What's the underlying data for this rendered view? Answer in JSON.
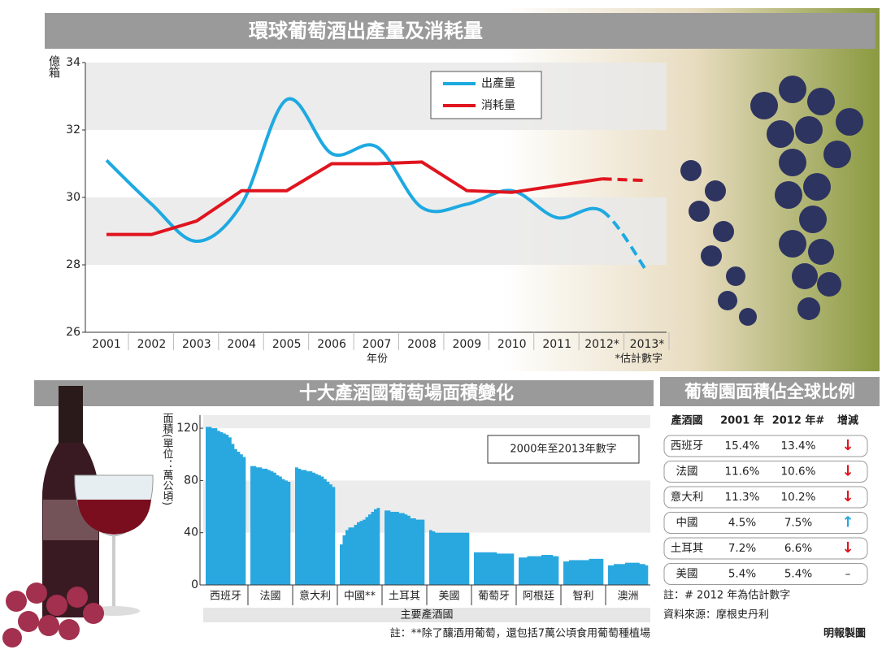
{
  "chart_data": [
    {
      "type": "line",
      "title": "環球葡萄酒出產量及消耗量",
      "ylabel": "億箱",
      "xlabel": "年份",
      "note": "*估計數字",
      "categories": [
        "2001",
        "2002",
        "2003",
        "2004",
        "2005",
        "2006",
        "2007",
        "2008",
        "2009",
        "2010",
        "2011",
        "2012*",
        "2013*"
      ],
      "series": [
        {
          "name": "出產量",
          "color": "#1ea9e1",
          "smooth": true,
          "values": [
            31.1,
            29.8,
            28.7,
            29.8,
            32.9,
            31.3,
            31.5,
            29.7,
            29.8,
            30.2,
            29.4,
            29.6,
            27.8
          ]
        },
        {
          "name": "消耗量",
          "color": "#e0141e",
          "smooth": false,
          "values": [
            28.9,
            28.9,
            29.3,
            30.2,
            30.2,
            31.0,
            31.0,
            31.05,
            30.2,
            30.15,
            30.35,
            30.55,
            30.5
          ]
        }
      ],
      "ylim": [
        26,
        34
      ],
      "yticks": [
        26,
        28,
        30,
        32,
        34
      ],
      "grid": "bands"
    },
    {
      "type": "bar",
      "title": "十大產酒國葡萄場面積變化",
      "ylabel": "面積(單位：萬公頃)",
      "xlabel": "主要產酒國",
      "note": "2000年至2013年數字",
      "footnote": "註：**除了釀酒用葡萄，還包括7萬公頃食用葡萄種植場",
      "color": "#29a8e0",
      "categories": [
        "西班牙",
        "法國",
        "意大利",
        "中國**",
        "土耳其",
        "美國",
        "葡萄牙",
        "阿根廷",
        "智利",
        "澳洲"
      ],
      "values": [
        [
          121,
          121,
          120,
          120,
          118,
          117,
          116,
          115,
          113,
          108,
          104,
          102,
          100,
          98
        ],
        [
          91,
          91,
          90,
          90,
          89,
          89,
          88,
          87,
          86,
          84,
          83,
          81,
          80,
          79
        ],
        [
          90,
          89,
          88,
          88,
          87,
          87,
          86,
          85,
          84,
          83,
          81,
          79,
          77,
          75
        ],
        [
          31,
          38,
          42,
          44,
          44,
          46,
          48,
          49,
          50,
          52,
          54,
          56,
          58,
          59
        ],
        [
          57,
          57,
          56,
          56,
          56,
          55,
          55,
          54,
          53,
          51,
          51,
          50,
          50,
          50
        ],
        [
          42,
          41,
          40,
          40,
          40,
          40,
          40,
          40,
          40,
          40,
          40,
          40,
          40,
          40
        ],
        [
          25,
          25,
          25,
          25,
          25,
          25,
          25,
          25,
          24,
          24,
          24,
          24,
          24,
          24
        ],
        [
          21,
          21,
          21,
          22,
          22,
          22,
          22,
          22,
          23,
          23,
          23,
          23,
          22,
          22
        ],
        [
          18,
          18,
          19,
          19,
          19,
          19,
          19,
          19,
          19,
          20,
          20,
          20,
          20,
          20
        ],
        [
          15,
          15,
          16,
          16,
          16,
          16,
          17,
          17,
          17,
          17,
          17,
          16,
          16,
          15
        ]
      ],
      "ylim": [
        0,
        130
      ],
      "yticks": [
        0,
        40,
        80,
        120
      ],
      "grid": "bands"
    }
  ],
  "table": {
    "title": "葡萄園面積佔全球比例",
    "columns": [
      "產酒國",
      "2001 年",
      "2012 年#",
      "增減"
    ],
    "rows": [
      [
        "西班牙",
        "15.4%",
        "13.4%",
        "↓"
      ],
      [
        "法國",
        "11.6%",
        "10.6%",
        "↓"
      ],
      [
        "意大利",
        "11.3%",
        "10.2%",
        "↓"
      ],
      [
        "中國",
        "4.5%",
        "7.5%",
        "↑"
      ],
      [
        "土耳其",
        "7.2%",
        "6.6%",
        "↓"
      ],
      [
        "美國",
        "5.4%",
        "5.4%",
        "–"
      ]
    ],
    "notes": [
      "註：# 2012 年為估計數字",
      "資料來源：摩根史丹利"
    ]
  },
  "credit": "明報製圖"
}
